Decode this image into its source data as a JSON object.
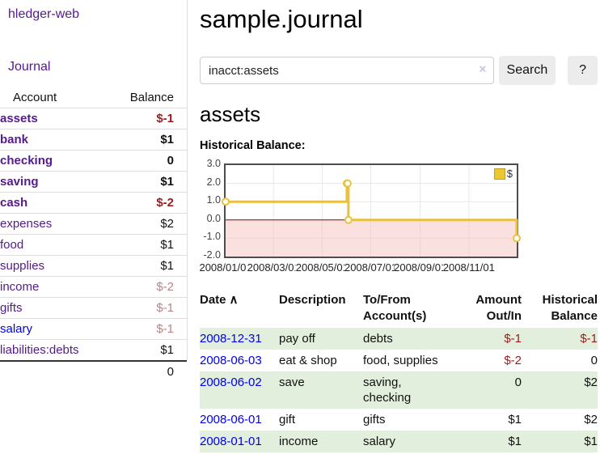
{
  "app": {
    "title": "hledger-web"
  },
  "sidebar": {
    "journal_label": "Journal",
    "account_header": "Account",
    "balance_header": "Balance",
    "rows": [
      {
        "account": "assets",
        "balance": "$-1",
        "level": 1,
        "bold": true,
        "balance_style": "neg-strong"
      },
      {
        "account": "bank",
        "balance": "$1",
        "level": 2,
        "bold": true,
        "balance_style": "normal"
      },
      {
        "account": "checking",
        "balance": "0",
        "level": 3,
        "bold": true,
        "balance_style": "normal"
      },
      {
        "account": "saving",
        "balance": "$1",
        "level": 3,
        "bold": true,
        "balance_style": "normal"
      },
      {
        "account": "cash",
        "balance": "$-2",
        "level": 2,
        "bold": true,
        "balance_style": "neg-strong"
      },
      {
        "account": "expenses",
        "balance": "$2",
        "level": 1,
        "bold": false,
        "balance_style": "normal"
      },
      {
        "account": "food",
        "balance": "$1",
        "level": 2,
        "bold": false,
        "balance_style": "normal"
      },
      {
        "account": "supplies",
        "balance": "$1",
        "level": 2,
        "bold": false,
        "balance_style": "normal"
      },
      {
        "account": "income",
        "balance": "$-2",
        "level": 1,
        "bold": false,
        "balance_style": "neg-muted"
      },
      {
        "account": "gifts",
        "balance": "$-1",
        "level": 2,
        "bold": false,
        "balance_style": "neg-muted"
      },
      {
        "account": "salary",
        "balance": "$-1",
        "level": 2,
        "bold": false,
        "balance_style": "neg-muted",
        "link_color": "blue"
      },
      {
        "account": "liabilities:debts",
        "balance": "$1",
        "level": 1,
        "bold": false,
        "balance_style": "normal"
      }
    ],
    "total": "0"
  },
  "main": {
    "title": "sample.journal",
    "search": {
      "value": "inacct:assets",
      "clear_icon": "×",
      "button_label": "Search",
      "help_label": "?"
    },
    "account_heading": "assets",
    "chart_heading": "Historical Balance:"
  },
  "chart_data": {
    "type": "line",
    "title": "Historical Balance:",
    "step": true,
    "series": [
      {
        "name": "$",
        "points": [
          [
            "2008-01-01",
            1
          ],
          [
            "2008-06-01",
            2
          ],
          [
            "2008-06-02",
            2
          ],
          [
            "2008-06-03",
            0
          ],
          [
            "2008-12-31",
            -1
          ]
        ]
      }
    ],
    "xlim": [
      "2008-01-01",
      "2008-12-31"
    ],
    "ylim": [
      -2.0,
      3.0
    ],
    "y_ticks": [
      "3.0",
      "2.0",
      "1.0",
      "0.0",
      "-1.0",
      "-2.0"
    ],
    "x_ticks": [
      "2008/01/01",
      "2008/03/01",
      "2008/05/01",
      "2008/07/01",
      "2008/09/01",
      "2008/11/01"
    ],
    "legend_position": "top-right",
    "grid": true,
    "negative_region": [
      0,
      -2
    ],
    "colors": {
      "line": "#e9c13f",
      "marker_fill": "#ffffff",
      "zero_line": "#8b0000",
      "negative_fill": "rgba(247,198,198,0.55)",
      "grid": "#e7e7e7",
      "border": "#4d4d4d"
    }
  },
  "transactions": {
    "headers": {
      "date": "Date",
      "sort_icon": "∧",
      "description": "Description",
      "accounts": "To/From Account(s)",
      "amount": "Amount Out/In",
      "balance": "Historical Balance"
    },
    "rows": [
      {
        "date": "2008-12-31",
        "description": "pay off",
        "accounts": "debts",
        "amount": "$-1",
        "balance": "$-1",
        "amount_negative": true,
        "balance_negative": true
      },
      {
        "date": "2008-06-03",
        "description": "eat & shop",
        "accounts": "food, supplies",
        "amount": "$-2",
        "balance": "0",
        "amount_negative": true,
        "balance_negative": false
      },
      {
        "date": "2008-06-02",
        "description": "save",
        "accounts": "saving, checking",
        "amount": "0",
        "balance": "$2",
        "amount_negative": false,
        "balance_negative": false
      },
      {
        "date": "2008-06-01",
        "description": "gift",
        "accounts": "gifts",
        "amount": "$1",
        "balance": "$2",
        "amount_negative": false,
        "balance_negative": false
      },
      {
        "date": "2008-01-01",
        "description": "income",
        "accounts": "salary",
        "amount": "$1",
        "balance": "$1",
        "amount_negative": false,
        "balance_negative": false
      }
    ]
  },
  "colors": {
    "link_purple": "#551a8b",
    "link_blue": "#0000ee",
    "negative_strong": "#9c1b1b",
    "negative_muted": "#b98383",
    "row_stripe_green": "#e2efdc",
    "sidebar_divider": "#dddddd"
  }
}
